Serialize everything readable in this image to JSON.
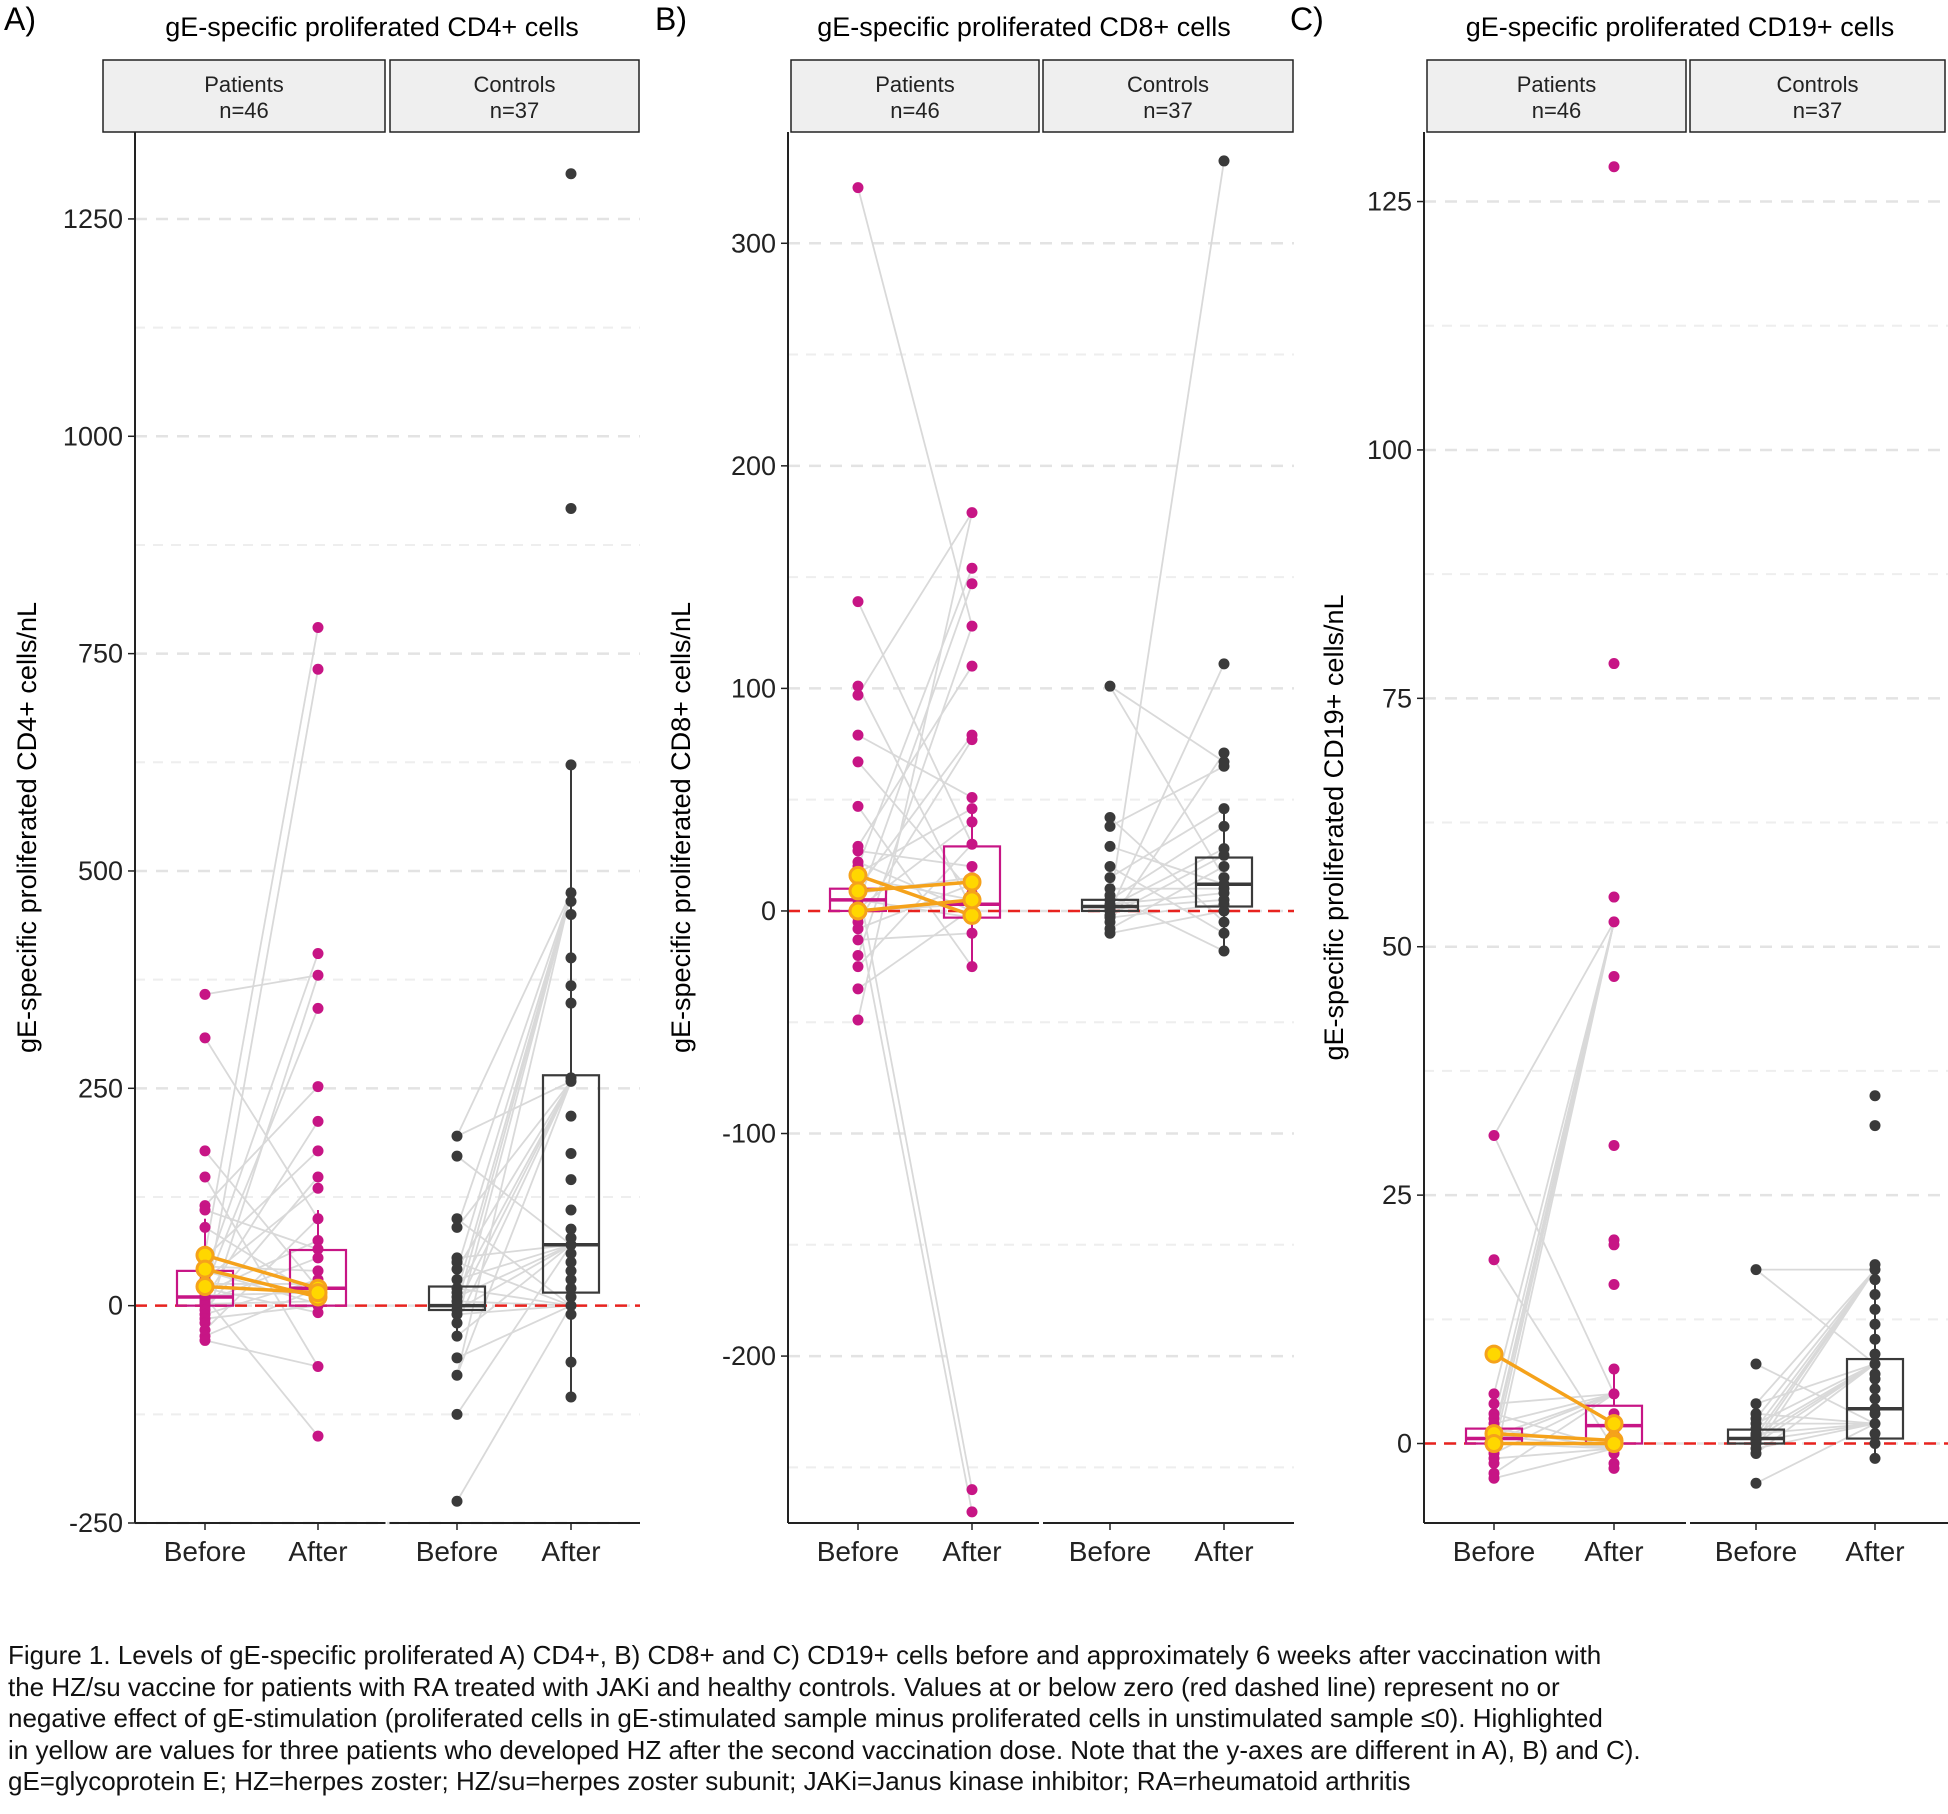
{
  "panels": [
    {
      "letter": "A)",
      "title": "gE-specific proliferated CD4+ cells",
      "ylabel": "gE-specific proliferated CD4+ cells/nL",
      "strips": [
        {
          "line1": "Patients",
          "line2": "n=46"
        },
        {
          "line1": "Controls",
          "line2": "n=37"
        }
      ],
      "xticks": [
        "Before",
        "After",
        "Before",
        "After"
      ],
      "yticks": [
        "-250",
        "0",
        "250",
        "500",
        "750",
        "1000",
        "1250"
      ]
    },
    {
      "letter": "B)",
      "title": "gE-specific proliferated CD8+ cells",
      "ylabel": "gE-specific proliferated CD8+ cells/nL",
      "strips": [
        {
          "line1": "Patients",
          "line2": "n=46"
        },
        {
          "line1": "Controls",
          "line2": "n=37"
        }
      ],
      "xticks": [
        "Before",
        "After",
        "Before",
        "After"
      ],
      "yticks": [
        "-200",
        "-100",
        "0",
        "100",
        "200",
        "300"
      ]
    },
    {
      "letter": "C)",
      "title": "gE-specific proliferated CD19+ cells",
      "ylabel": "gE-specific proliferated CD19+ cells/nL",
      "strips": [
        {
          "line1": "Patients",
          "line2": "n=46"
        },
        {
          "line1": "Controls",
          "line2": "n=37"
        }
      ],
      "xticks": [
        "Before",
        "After",
        "Before",
        "After"
      ],
      "yticks": [
        "0",
        "25",
        "50",
        "75",
        "100",
        "125"
      ]
    }
  ],
  "caption": [
    "Figure 1. Levels of gE-specific proliferated A) CD4+, B) CD8+ and C) CD19+ cells before and approximately 6 weeks after vaccination with",
    "the HZ/su vaccine for patients with RA treated with JAKi and healthy controls. Values at or below zero (red dashed line) represent no or",
    "negative effect of gE-stimulation (proliferated cells in gE-stimulated sample minus proliferated cells in unstimulated sample ≤0). Highlighted",
    "in yellow are values for three patients who developed HZ after the second vaccination dose. Note that the y-axes are different in A), B) and C).",
    "gE=glycoprotein E; HZ=herpes zoster; HZ/su=herpes zoster subunit; JAKi=Janus kinase inhibitor; RA=rheumatoid arthritis"
  ],
  "colors": {
    "patients": "#c71585",
    "controls": "#3a3a3a",
    "highlight_line": "#f5a21b",
    "highlight_fill": "#ffd700",
    "zero_line": "#e8231f",
    "pair_line": "#d9d9d9",
    "strip_fill": "#efefef",
    "grid": "#e3e3e3"
  },
  "chart_data": [
    {
      "type": "box-paired-points",
      "title": "gE-specific proliferated CD4+ cells",
      "ylabel": "gE-specific proliferated CD4+ cells/nL",
      "ylim": [
        -250,
        1350
      ],
      "yticks": [
        -250,
        0,
        250,
        500,
        750,
        1000,
        1250
      ],
      "reference_line": 0,
      "groups": [
        {
          "name": "Patients",
          "n": "n=46",
          "before": [
            358,
            308,
            178,
            148,
            115,
            110,
            90,
            60,
            55,
            45,
            40,
            35,
            30,
            25,
            20,
            20,
            15,
            12,
            10,
            8,
            5,
            2,
            0,
            -5,
            -10,
            -15,
            -20,
            -28,
            -35,
            -40
          ],
          "after": [
            780,
            732,
            405,
            380,
            342,
            252,
            212,
            178,
            148,
            135,
            100,
            75,
            65,
            55,
            40,
            30,
            25,
            20,
            15,
            10,
            5,
            2,
            0,
            -8,
            -70,
            -150
          ],
          "box_before": {
            "q1": 0,
            "median": 10,
            "q3": 40,
            "wlo": -40,
            "whi": 100
          },
          "box_after": {
            "q1": 0,
            "median": 20,
            "q3": 64,
            "wlo": -10,
            "whi": 110
          },
          "highlight_pairs": [
            [
              58,
              20
            ],
            [
              42,
              10
            ],
            [
              22,
              15
            ]
          ]
        },
        {
          "name": "Controls",
          "n": "n=37",
          "before": [
            195,
            172,
            100,
            90,
            55,
            50,
            42,
            30,
            20,
            15,
            10,
            5,
            0,
            -5,
            -10,
            -20,
            -35,
            -60,
            -80,
            -125,
            -225
          ],
          "after": [
            1302,
            917,
            622,
            475,
            465,
            450,
            400,
            368,
            348,
            262,
            258,
            218,
            175,
            145,
            110,
            88,
            78,
            70,
            60,
            50,
            40,
            30,
            20,
            10,
            0,
            -10,
            -65,
            -105
          ],
          "box_before": {
            "q1": -5,
            "median": 0,
            "q3": 22,
            "wlo": -35,
            "whi": 60
          },
          "box_after": {
            "q1": 15,
            "median": 70,
            "q3": 265,
            "wlo": -105,
            "whi": 622
          },
          "highlight_pairs": []
        }
      ]
    },
    {
      "type": "box-paired-points",
      "title": "gE-specific proliferated CD8+ cells",
      "ylabel": "gE-specific proliferated CD8+ cells/nL",
      "ylim": [
        -275,
        350
      ],
      "yticks": [
        -200,
        -100,
        0,
        100,
        200,
        300
      ],
      "reference_line": 0,
      "groups": [
        {
          "name": "Patients",
          "n": "n=46",
          "before": [
            325,
            139,
            101,
            97,
            79,
            67,
            47,
            29,
            27,
            22,
            20,
            17,
            15,
            12,
            10,
            8,
            5,
            3,
            1,
            0,
            -3,
            -5,
            -8,
            -13,
            -20,
            -25,
            -35,
            -49
          ],
          "after": [
            179,
            154,
            147,
            128,
            110,
            79,
            77,
            51,
            46,
            40,
            30,
            20,
            15,
            12,
            8,
            5,
            3,
            1,
            0,
            -3,
            -10,
            -25,
            -260,
            -270
          ],
          "box_before": {
            "q1": 0,
            "median": 5,
            "q3": 10,
            "wlo": -5,
            "whi": 20
          },
          "box_after": {
            "q1": -3,
            "median": 3,
            "q3": 29,
            "wlo": -25,
            "whi": 46
          },
          "highlight_pairs": [
            [
              16,
              -2
            ],
            [
              9,
              13
            ],
            [
              0,
              5
            ]
          ]
        },
        {
          "name": "Controls",
          "n": "n=37",
          "before": [
            101,
            42,
            38,
            29,
            20,
            15,
            10,
            7,
            5,
            3,
            2,
            1,
            0,
            -2,
            -3,
            -5,
            -8,
            -10
          ],
          "after": [
            337,
            111,
            71,
            67,
            65,
            46,
            38,
            28,
            25,
            20,
            15,
            12,
            10,
            8,
            5,
            3,
            0,
            -5,
            -10,
            -18
          ],
          "box_before": {
            "q1": 0,
            "median": 2,
            "q3": 5,
            "wlo": -10,
            "whi": 12
          },
          "box_after": {
            "q1": 2,
            "median": 12,
            "q3": 24,
            "wlo": -18,
            "whi": 46
          },
          "highlight_pairs": []
        }
      ]
    },
    {
      "type": "box-paired-points",
      "title": "gE-specific proliferated CD19+ cells",
      "ylabel": "gE-specific proliferated CD19+ cells/nL",
      "ylim": [
        -8,
        132
      ],
      "yticks": [
        0,
        25,
        50,
        75,
        100,
        125
      ],
      "reference_line": 0,
      "groups": [
        {
          "name": "Patients",
          "n": "n=46",
          "before": [
            31,
            18.5,
            5,
            4,
            3,
            2.5,
            2,
            1.5,
            1,
            0.8,
            0.5,
            0.3,
            0,
            -0.5,
            -1,
            -1.5,
            -2,
            -3,
            -3.5
          ],
          "after": [
            128.5,
            78.5,
            55,
            52.5,
            47,
            30,
            20.5,
            20,
            16,
            7.5,
            5,
            3,
            2,
            1.5,
            1,
            0.5,
            0,
            -0.5,
            -1,
            -2,
            -2.5
          ],
          "box_before": {
            "q1": 0,
            "median": 0.5,
            "q3": 1.5,
            "wlo": -3.5,
            "whi": 4
          },
          "box_after": {
            "q1": 0,
            "median": 1.8,
            "q3": 3.8,
            "wlo": -2.5,
            "whi": 7.5
          },
          "highlight_pairs": [
            [
              9,
              2
            ],
            [
              1,
              0.3
            ],
            [
              0,
              0
            ]
          ]
        },
        {
          "name": "Controls",
          "n": "n=37",
          "before": [
            17.5,
            8,
            4,
            3,
            2.5,
            2,
            1.5,
            1,
            0.8,
            0.5,
            0.3,
            0,
            -0.5,
            -1,
            -4
          ],
          "after": [
            35,
            32,
            18,
            17.5,
            16.5,
            15,
            13.5,
            12,
            10.5,
            9,
            8,
            7,
            6.5,
            5.5,
            4.5,
            3.5,
            3,
            2,
            1,
            0,
            -1.5
          ],
          "box_before": {
            "q1": 0,
            "median": 0.5,
            "q3": 1.4,
            "wlo": -1,
            "whi": 3
          },
          "box_after": {
            "q1": 0.5,
            "median": 3.5,
            "q3": 8.5,
            "wlo": -1.5,
            "whi": 18
          },
          "highlight_pairs": []
        }
      ]
    }
  ]
}
